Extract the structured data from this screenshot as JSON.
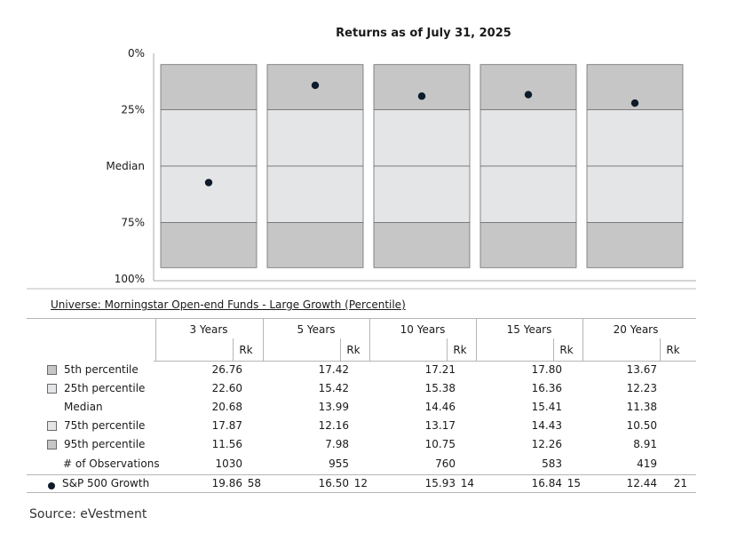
{
  "chart_data": {
    "type": "floating-bar-percentile",
    "title": "Returns as of July 31, 2025",
    "y_axis_labels": [
      "0%",
      "25%",
      "Median",
      "75%",
      "100%"
    ],
    "categories": [
      "3 Years",
      "5 Years",
      "10 Years",
      "15 Years",
      "20 Years"
    ],
    "percentile_rows": [
      {
        "label": "5th percentile",
        "values": [
          26.76,
          17.42,
          17.21,
          17.8,
          13.67
        ]
      },
      {
        "label": "25th percentile",
        "values": [
          22.6,
          15.42,
          15.38,
          16.36,
          12.23
        ]
      },
      {
        "label": "Median",
        "values": [
          20.68,
          13.99,
          14.46,
          15.41,
          11.38
        ]
      },
      {
        "label": "75th percentile",
        "values": [
          17.87,
          12.16,
          13.17,
          14.43,
          10.5
        ]
      },
      {
        "label": "95th percentile",
        "values": [
          11.56,
          7.98,
          10.75,
          12.26,
          8.91
        ]
      }
    ],
    "observations": {
      "label": "# of Observations",
      "values": [
        1030,
        955,
        760,
        583,
        419
      ]
    },
    "series": [
      {
        "name": "S&P 500 Growth",
        "values": [
          19.86,
          16.5,
          15.93,
          16.84,
          12.44
        ],
        "ranks": [
          58,
          12,
          14,
          15,
          21
        ]
      }
    ],
    "ylim_percentile": [
      0,
      100
    ],
    "colors": {
      "outer_band": "#c6c6c6",
      "inner_band": "#e3e5e7",
      "marker": "#0d1b2a"
    }
  },
  "table": {
    "universe": "Universe: Morningstar Open-end Funds - Large Growth (Percentile)",
    "rank_header": "Rk",
    "rows": [
      {
        "label": "5th percentile",
        "swatch": "outer",
        "values": [
          "26.76",
          "17.42",
          "17.21",
          "17.80",
          "13.67"
        ],
        "ranks": []
      },
      {
        "label": "25th percentile",
        "swatch": "inner",
        "values": [
          "22.60",
          "15.42",
          "15.38",
          "16.36",
          "12.23"
        ],
        "ranks": []
      },
      {
        "label": "Median",
        "swatch": "none",
        "values": [
          "20.68",
          "13.99",
          "14.46",
          "15.41",
          "11.38"
        ],
        "ranks": []
      },
      {
        "label": "75th percentile",
        "swatch": "inner",
        "values": [
          "17.87",
          "12.16",
          "13.17",
          "14.43",
          "10.50"
        ],
        "ranks": []
      },
      {
        "label": "95th percentile",
        "swatch": "outer",
        "values": [
          "11.56",
          "7.98",
          "10.75",
          "12.26",
          "8.91"
        ],
        "ranks": []
      },
      {
        "label": "# of Observations",
        "swatch": "none",
        "values": [
          "1030",
          "955",
          "760",
          "583",
          "419"
        ],
        "ranks": []
      },
      {
        "label": "S&P 500 Growth",
        "swatch": "dot",
        "values": [
          "19.86",
          "16.50",
          "15.93",
          "16.84",
          "12.44"
        ],
        "ranks": [
          "58",
          "12",
          "14",
          "15",
          "21"
        ]
      }
    ]
  },
  "source": "Source: eVestment"
}
